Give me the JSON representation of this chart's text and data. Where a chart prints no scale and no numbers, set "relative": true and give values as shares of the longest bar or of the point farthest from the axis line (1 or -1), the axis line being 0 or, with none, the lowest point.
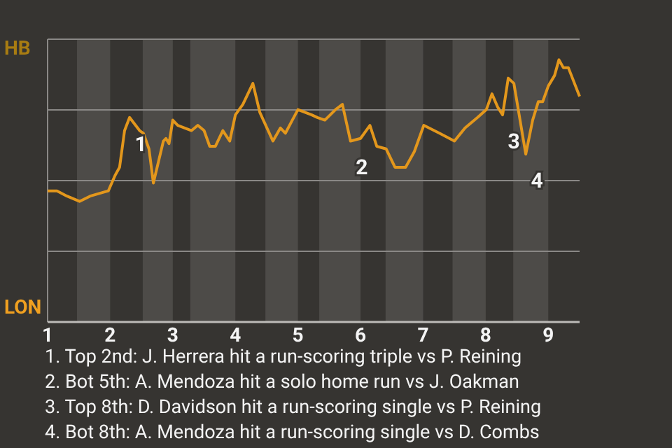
{
  "chart_data": {
    "type": "line",
    "relative": true,
    "grid": true,
    "marker": "none",
    "line_style": "solid",
    "xlim": [
      1,
      9.5
    ],
    "xticks": [
      1,
      2,
      3,
      4,
      5,
      6,
      7,
      8,
      9
    ],
    "bands": [
      {
        "axis": "x",
        "from": 1.47,
        "to": 2,
        "color": "#4d4b48"
      },
      {
        "axis": "x",
        "from": 2.52,
        "to": 3,
        "color": "#4d4b48"
      },
      {
        "axis": "x",
        "from": 3.28,
        "to": 4,
        "color": "#4d4b48"
      },
      {
        "axis": "x",
        "from": 4.48,
        "to": 5,
        "color": "#4d4b48"
      },
      {
        "axis": "x",
        "from": 5.34,
        "to": 6,
        "color": "#4d4b48"
      },
      {
        "axis": "x",
        "from": 6.4,
        "to": 7,
        "color": "#4d4b48"
      },
      {
        "axis": "x",
        "from": 7.47,
        "to": 8,
        "color": "#4d4b48"
      },
      {
        "axis": "x",
        "from": 8.44,
        "to": 9,
        "color": "#4d4b48"
      }
    ],
    "series": [
      {
        "color": "#e3971c",
        "x": [
          1,
          1.15,
          1.31,
          1.51,
          1.68,
          1.97,
          2.08,
          2.15,
          2.23,
          2.31,
          2.47,
          2.53,
          2.62,
          2.69,
          2.85,
          2.89,
          2.94,
          3,
          3.08,
          3.3,
          3.4,
          3.5,
          3.59,
          3.68,
          3.8,
          3.91,
          4,
          4.12,
          4.28,
          4.39,
          4.6,
          4.72,
          4.8,
          4.91,
          5,
          5.22,
          5.31,
          5.43,
          5.6,
          5.71,
          5.84,
          6,
          6.15,
          6.26,
          6.41,
          6.55,
          6.72,
          6.86,
          7.01,
          7.26,
          7.5,
          7.67,
          7.87,
          8.01,
          8.1,
          8.19,
          8.27,
          8.36,
          8.45,
          8.64,
          8.75,
          8.84,
          8.91,
          9,
          9.1,
          9.17,
          9.24,
          9.32,
          9.5
        ],
        "values": [
          0.5,
          0.5,
          0.48,
          0.46,
          0.48,
          0.5,
          0.56,
          0.59,
          0.73,
          0.78,
          0.73,
          0.72,
          0.66,
          0.53,
          0.69,
          0.7,
          0.68,
          0.77,
          0.75,
          0.73,
          0.75,
          0.73,
          0.67,
          0.67,
          0.73,
          0.69,
          0.79,
          0.83,
          0.91,
          0.8,
          0.69,
          0.74,
          0.72,
          0.77,
          0.81,
          0.79,
          0.78,
          0.77,
          0.81,
          0.83,
          0.69,
          0.7,
          0.75,
          0.67,
          0.66,
          0.59,
          0.59,
          0.65,
          0.75,
          0.72,
          0.69,
          0.74,
          0.78,
          0.81,
          0.87,
          0.82,
          0.79,
          0.93,
          0.91,
          0.64,
          0.77,
          0.84,
          0.84,
          0.9,
          0.94,
          1,
          0.97,
          0.97,
          0.86
        ]
      }
    ],
    "annotations": [
      "HB",
      "LON",
      {
        "text": "1",
        "x": 2.31,
        "y": 0.78
      },
      {
        "text": "2",
        "x": 5.84,
        "y": 0.69
      },
      {
        "text": "3",
        "x": 8.27,
        "y": 0.79
      },
      {
        "text": "4",
        "x": 8.64,
        "y": 0.64
      },
      "1. Top 2nd: J. Herrera hit a run-scoring triple vs P. Reining",
      "2. Bot 5th: A. Mendoza hit a solo home run vs J. Oakman",
      "3. Top 8th: D. Davidson hit a run-scoring single vs P. Reining",
      "4. Bot 8th: A. Mendoza hit a run-scoring single vs D. Combs"
    ]
  }
}
